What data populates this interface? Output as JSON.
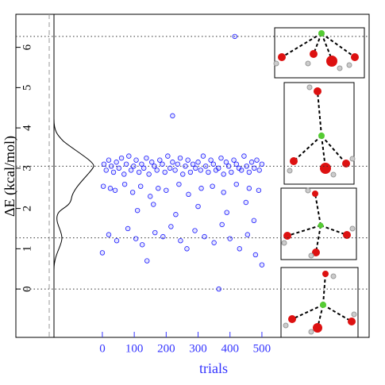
{
  "chart_data": {
    "type": "scatter",
    "x_label": "trials",
    "y_label": "ΔE (kcal/mol)",
    "color": "#1a1aff",
    "axis_label_color": "#3333ff",
    "xlim": [
      -271,
      836
    ],
    "ylim": [
      -1.2,
      6.82
    ],
    "xticks": [
      0,
      100,
      200,
      300,
      400,
      500
    ],
    "yticks": [
      0,
      1,
      2,
      3,
      4,
      5,
      6
    ],
    "reference_lines": [
      6.27,
      3.05,
      1.27,
      0
    ],
    "x": [
      5,
      12,
      20,
      28,
      35,
      44,
      52,
      60,
      68,
      75,
      83,
      90,
      98,
      106,
      115,
      123,
      130,
      138,
      146,
      155,
      163,
      171,
      180,
      188,
      196,
      205,
      212,
      220,
      228,
      236,
      244,
      252,
      260,
      268,
      276,
      284,
      292,
      300,
      308,
      316,
      324,
      332,
      340,
      348,
      356,
      364,
      372,
      380,
      388,
      396,
      404,
      412,
      420,
      428,
      436,
      444,
      452,
      460,
      468,
      476,
      484,
      492,
      500,
      3,
      25,
      40,
      70,
      95,
      120,
      150,
      175,
      200,
      240,
      270,
      310,
      345,
      380,
      420,
      460,
      490,
      110,
      160,
      230,
      300,
      390,
      450,
      475,
      0,
      20,
      45,
      80,
      105,
      125,
      140,
      165,
      190,
      215,
      245,
      265,
      290,
      320,
      350,
      375,
      400,
      430,
      455,
      480,
      500,
      415,
      220,
      365
    ],
    "values": [
      3.1,
      2.95,
      3.2,
      3.05,
      2.9,
      3.15,
      3.0,
      3.25,
      2.85,
      3.1,
      3.3,
      2.95,
      3.05,
      3.2,
      2.9,
      3.1,
      3.0,
      3.25,
      2.85,
      3.15,
      3.05,
      2.95,
      3.2,
      3.1,
      2.9,
      3.3,
      3.0,
      3.15,
      2.95,
      3.1,
      3.25,
      2.85,
      3.05,
      3.2,
      2.9,
      3.1,
      3.0,
      3.15,
      2.95,
      3.3,
      3.05,
      2.9,
      3.2,
      3.1,
      2.95,
      3.0,
      3.25,
      2.85,
      3.15,
      3.05,
      2.9,
      3.2,
      3.1,
      3.0,
      2.95,
      3.3,
      3.05,
      2.9,
      3.15,
      3.0,
      3.2,
      2.95,
      3.1,
      2.55,
      2.5,
      2.45,
      2.6,
      2.4,
      2.55,
      2.3,
      2.5,
      2.45,
      2.6,
      2.35,
      2.5,
      2.55,
      2.4,
      2.6,
      2.5,
      2.45,
      1.95,
      2.1,
      1.85,
      2.05,
      1.9,
      2.15,
      1.7,
      0.9,
      1.35,
      1.2,
      1.5,
      1.25,
      1.1,
      0.7,
      1.4,
      1.3,
      1.55,
      1.2,
      1.0,
      1.45,
      1.3,
      1.15,
      1.6,
      1.25,
      1.0,
      1.35,
      0.85,
      0.6,
      6.27,
      4.3,
      0.0
    ]
  }
}
